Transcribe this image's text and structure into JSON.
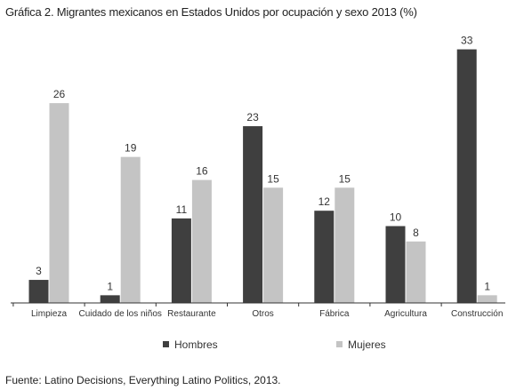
{
  "title": "Gráfica 2. Migrantes mexicanos en Estados Unidos por ocupación y sexo 2013 (%)",
  "source": "Fuente: Latino Decisions, Everything Latino Politics, 2013.",
  "colors": {
    "hombres": "#3f3f3f",
    "mujeres": "#c4c4c4",
    "axis": "#333333"
  },
  "chart_data": {
    "type": "bar",
    "title": "Gráfica 2. Migrantes mexicanos en Estados Unidos por ocupación y sexo 2013 (%)",
    "xlabel": "",
    "ylabel": "",
    "ylim": [
      0,
      34
    ],
    "grid": false,
    "legend": "bottom",
    "categories": [
      "Limpieza",
      "Cuidado de los niños",
      "Restaurante",
      "Otros",
      "Fábrica",
      "Agricultura",
      "Construcción"
    ],
    "series": [
      {
        "name": "Hombres",
        "values": [
          3,
          1,
          11,
          23,
          12,
          10,
          33
        ]
      },
      {
        "name": "Mujeres",
        "values": [
          26,
          19,
          16,
          15,
          15,
          8,
          1
        ]
      }
    ]
  }
}
